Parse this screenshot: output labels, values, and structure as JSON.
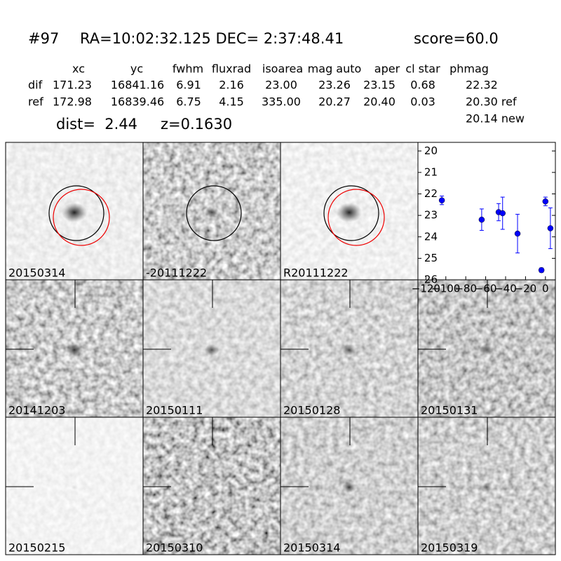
{
  "header": {
    "id": "#97",
    "coords": "RA=10:02:32.125 DEC= 2:37:48.41",
    "score": "score=60.0"
  },
  "table": {
    "columns": [
      "xc",
      "yc",
      "fwhm",
      "fluxrad",
      "isoarea",
      "mag auto",
      "aper",
      "cl star",
      "phmag"
    ],
    "rows": [
      [
        "dif",
        "171.23",
        "16841.16",
        "6.91",
        "2.16",
        "23.00",
        "23.26",
        "23.15",
        "0.68",
        "22.32"
      ],
      [
        "ref",
        "172.98",
        "16839.46",
        "6.75",
        "4.15",
        "335.00",
        "20.27",
        "20.40",
        "0.03",
        "20.30 ref"
      ]
    ],
    "note": "20.14 new"
  },
  "info": {
    "dist": "dist=  2.44",
    "z": "z=0.1630"
  },
  "panels": [
    "20150314",
    "-20111222",
    "R20111222",
    "20141203",
    "20150111",
    "20150128",
    "20150131",
    "20150215",
    "20150310",
    "20150314",
    "20150319"
  ],
  "chart_data": {
    "type": "scatter",
    "x": [
      -104,
      -64,
      -47,
      -43,
      -28,
      -4,
      0,
      5
    ],
    "values": [
      22.3,
      23.2,
      22.85,
      22.9,
      23.85,
      25.55,
      22.35,
      23.6
    ],
    "errors": [
      0.2,
      0.5,
      0.4,
      0.75,
      0.9,
      0.1,
      0.2,
      0.95
    ],
    "color": "#0000ff",
    "xlim": [
      -128,
      10
    ],
    "ylim": [
      26,
      19.6
    ],
    "xticks": [
      {
        "value": -120,
        "label": "−120"
      },
      {
        "value": -100,
        "label": "−100"
      },
      {
        "value": -80,
        "label": "−80"
      },
      {
        "value": -60,
        "label": "−60"
      },
      {
        "value": -40,
        "label": "−40"
      },
      {
        "value": -20,
        "label": "−20"
      },
      0
    ],
    "yticks": [
      20,
      21,
      22,
      23,
      24,
      25,
      26
    ]
  }
}
